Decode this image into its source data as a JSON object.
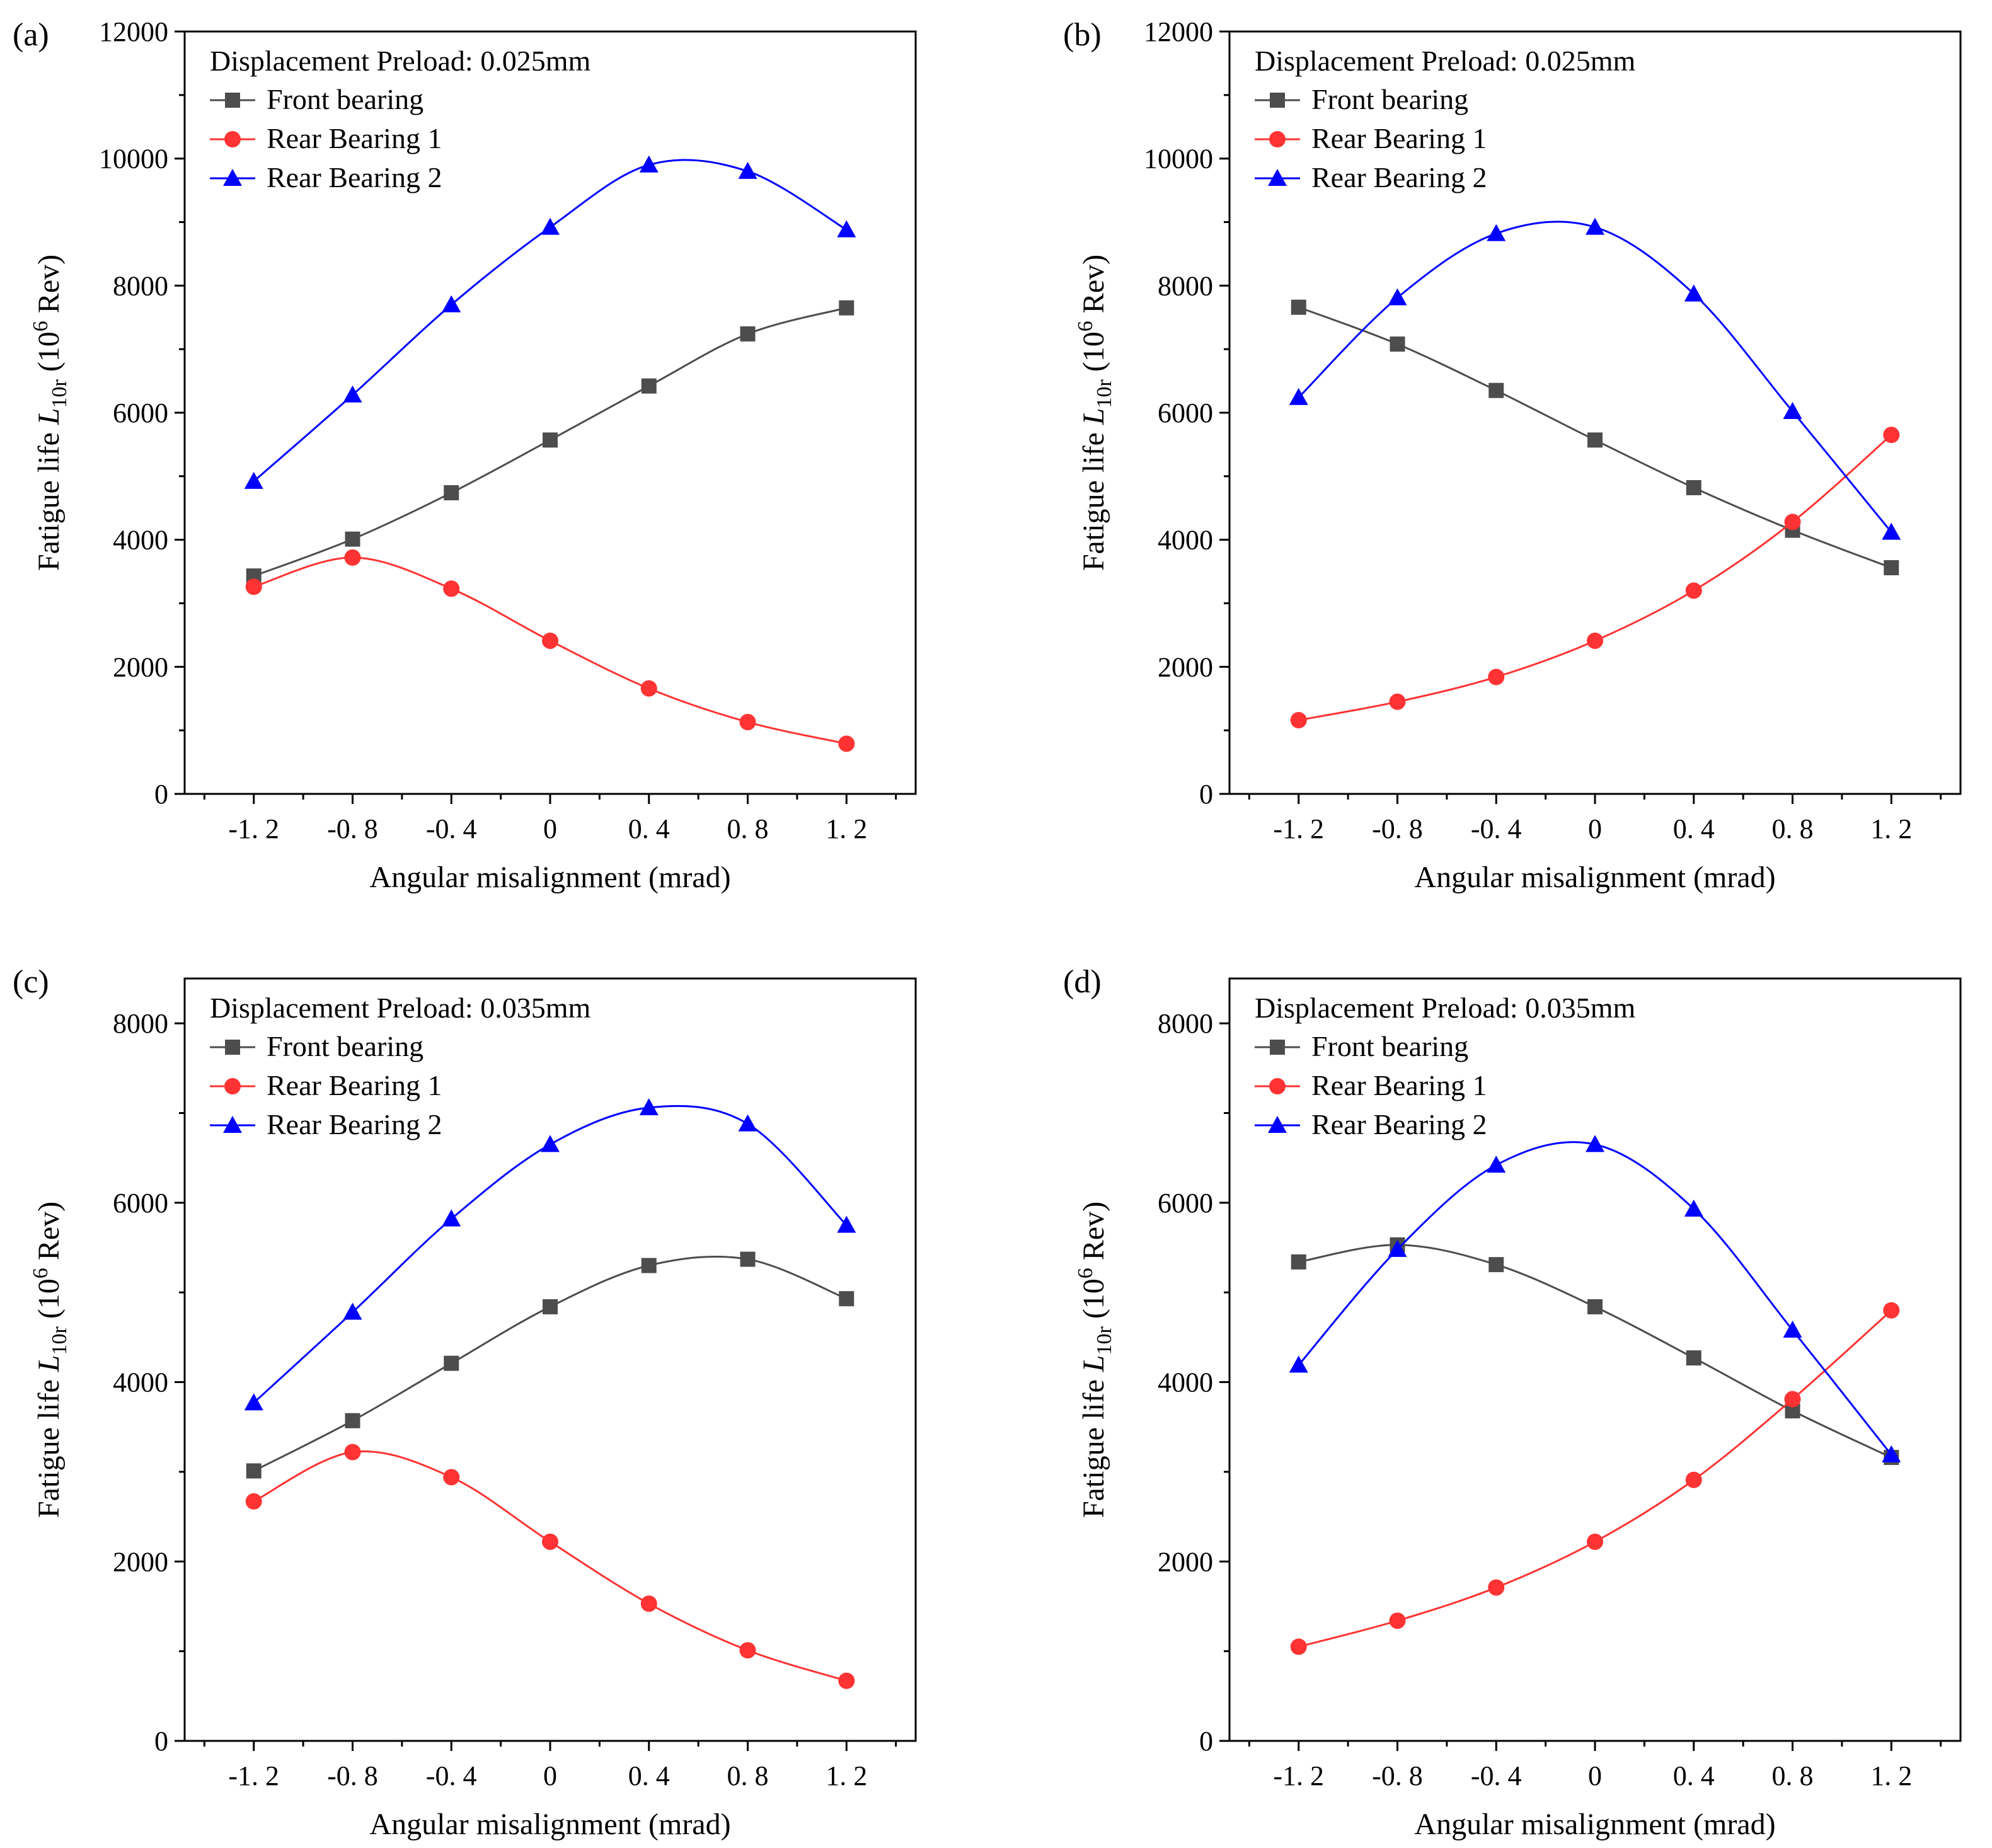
{
  "figure": {
    "legend_labels": [
      "Front bearing",
      "Rear Bearing 1",
      "Rear Bearing 2"
    ],
    "colors": {
      "front": "#4d4d4d",
      "rear1": "#ff3333",
      "rear2": "#0000ff",
      "axis": "#000000"
    }
  },
  "chart_data": [
    {
      "panel_label": "(a)",
      "type": "line",
      "preload_label": "Displacement Preload: 0.025mm",
      "xlabel": "Angular misalignment (mrad)",
      "ylabel_prefix": "Fatigue life ",
      "ylabel_var": "L",
      "ylabel_sub": "10r",
      "ylabel_open": " (10",
      "ylabel_sup": "6",
      "ylabel_close": " Rev)",
      "x": [
        -1.2,
        -0.8,
        -0.4,
        0,
        0.4,
        0.8,
        1.2
      ],
      "xtick_labels": [
        "-1. 2",
        "-0. 8",
        "-0. 4",
        "0",
        "0. 4",
        "0. 8",
        "1. 2"
      ],
      "xlim": [
        -1.48,
        1.48
      ],
      "ylim": [
        0,
        12000
      ],
      "yticks": [
        0,
        2000,
        4000,
        6000,
        8000,
        10000,
        12000
      ],
      "series": [
        {
          "name": "Front bearing",
          "marker": "square",
          "color": "#4d4d4d",
          "values": [
            3430,
            4010,
            4740,
            5570,
            6420,
            7240,
            7650
          ]
        },
        {
          "name": "Rear Bearing 1",
          "marker": "circle",
          "color": "#ff3333",
          "values": [
            3260,
            3720,
            3230,
            2410,
            1660,
            1130,
            790
          ]
        },
        {
          "name": "Rear Bearing 2",
          "marker": "triangle",
          "color": "#0000ff",
          "values": [
            4920,
            6280,
            7700,
            8920,
            9900,
            9800,
            8880
          ]
        }
      ]
    },
    {
      "panel_label": "(b)",
      "type": "line",
      "preload_label": "Displacement Preload: 0.025mm",
      "xlabel": "Angular misalignment (mrad)",
      "ylabel_prefix": "Fatigue life ",
      "ylabel_var": "L",
      "ylabel_sub": "10r",
      "ylabel_open": " (10",
      "ylabel_sup": "6",
      "ylabel_close": " Rev)",
      "x": [
        -1.2,
        -0.8,
        -0.4,
        0,
        0.4,
        0.8,
        1.2
      ],
      "xtick_labels": [
        "-1. 2",
        "-0. 8",
        "-0. 4",
        "0",
        "0. 4",
        "0. 8",
        "1. 2"
      ],
      "xlim": [
        -1.48,
        1.48
      ],
      "ylim": [
        0,
        12000
      ],
      "yticks": [
        0,
        2000,
        4000,
        6000,
        8000,
        10000,
        12000
      ],
      "series": [
        {
          "name": "Front bearing",
          "marker": "square",
          "color": "#4d4d4d",
          "values": [
            7660,
            7080,
            6350,
            5570,
            4820,
            4150,
            3560
          ]
        },
        {
          "name": "Rear Bearing 1",
          "marker": "circle",
          "color": "#ff3333",
          "values": [
            1160,
            1450,
            1840,
            2410,
            3200,
            4280,
            5650
          ]
        },
        {
          "name": "Rear Bearing 2",
          "marker": "triangle",
          "color": "#0000ff",
          "values": [
            6240,
            7810,
            8820,
            8920,
            7870,
            6020,
            4120
          ]
        }
      ]
    },
    {
      "panel_label": "(c)",
      "type": "line",
      "preload_label": "Displacement Preload: 0.035mm",
      "xlabel": "Angular misalignment (mrad)",
      "ylabel_prefix": "Fatigue life ",
      "ylabel_var": "L",
      "ylabel_sub": "10r",
      "ylabel_open": " (10",
      "ylabel_sup": "6",
      "ylabel_close": " Rev)",
      "x": [
        -1.2,
        -0.8,
        -0.4,
        0,
        0.4,
        0.8,
        1.2
      ],
      "xtick_labels": [
        "-1. 2",
        "-0. 8",
        "-0. 4",
        "0",
        "0. 4",
        "0. 8",
        "1. 2"
      ],
      "xlim": [
        -1.48,
        1.48
      ],
      "ylim": [
        0,
        8500
      ],
      "yticks": [
        0,
        2000,
        4000,
        6000,
        8000
      ],
      "series": [
        {
          "name": "Front bearing",
          "marker": "square",
          "color": "#4d4d4d",
          "values": [
            3010,
            3570,
            4210,
            4840,
            5300,
            5370,
            4930
          ]
        },
        {
          "name": "Rear Bearing 1",
          "marker": "circle",
          "color": "#ff3333",
          "values": [
            2670,
            3220,
            2940,
            2220,
            1530,
            1010,
            670
          ]
        },
        {
          "name": "Rear Bearing 2",
          "marker": "triangle",
          "color": "#0000ff",
          "values": [
            3770,
            4780,
            5820,
            6650,
            7060,
            6880,
            5750
          ]
        }
      ]
    },
    {
      "panel_label": "(d)",
      "type": "line",
      "preload_label": "Displacement Preload: 0.035mm",
      "xlabel": "Angular misalignment (mrad)",
      "ylabel_prefix": "Fatigue life ",
      "ylabel_var": "L",
      "ylabel_sub": "10r",
      "ylabel_open": " (10",
      "ylabel_sup": "6",
      "ylabel_close": " Rev)",
      "x": [
        -1.2,
        -0.8,
        -0.4,
        0,
        0.4,
        0.8,
        1.2
      ],
      "xtick_labels": [
        "-1. 2",
        "-0. 8",
        "-0. 4",
        "0",
        "0. 4",
        "0. 8",
        "1. 2"
      ],
      "xlim": [
        -1.48,
        1.48
      ],
      "ylim": [
        0,
        8500
      ],
      "yticks": [
        0,
        2000,
        4000,
        6000,
        8000
      ],
      "series": [
        {
          "name": "Front bearing",
          "marker": "square",
          "color": "#4d4d4d",
          "values": [
            5340,
            5530,
            5310,
            4840,
            4270,
            3680,
            3160
          ]
        },
        {
          "name": "Rear Bearing 1",
          "marker": "circle",
          "color": "#ff3333",
          "values": [
            1050,
            1340,
            1710,
            2220,
            2910,
            3810,
            4800
          ]
        },
        {
          "name": "Rear Bearing 2",
          "marker": "triangle",
          "color": "#0000ff",
          "values": [
            4190,
            5480,
            6420,
            6650,
            5930,
            4580,
            3190
          ]
        }
      ]
    }
  ]
}
